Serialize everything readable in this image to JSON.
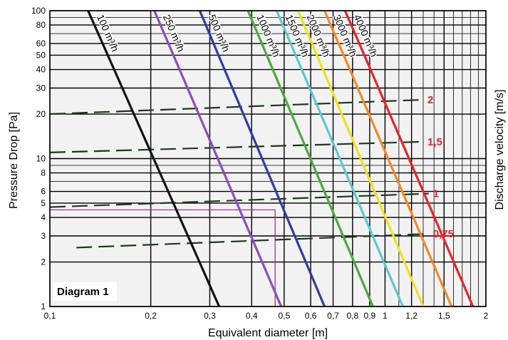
{
  "chart_data": {
    "type": "line",
    "diagram_label": "Diagram 1",
    "xlabel": "Equivalent diameter [m]",
    "ylabel": "Pressure Drop [Pa]",
    "y2label": "Discharge velocity [m/s]",
    "x_scale": "log",
    "y_scale": "log",
    "xlim": [
      0.1,
      2
    ],
    "ylim": [
      1,
      100
    ],
    "grid": true,
    "x_ticks": [
      {
        "value": 0.1,
        "label": "0,1"
      },
      {
        "value": 0.2,
        "label": "0,2"
      },
      {
        "value": 0.3,
        "label": "0,3"
      },
      {
        "value": 0.4,
        "label": "0,4"
      },
      {
        "value": 0.5,
        "label": "0,5"
      },
      {
        "value": 0.6,
        "label": "0,6"
      },
      {
        "value": 0.7,
        "label": "0,7"
      },
      {
        "value": 0.8,
        "label": "0,8"
      },
      {
        "value": 0.9,
        "label": "0,9"
      },
      {
        "value": 1.0,
        "label": "1"
      },
      {
        "value": 1.2,
        "label": "1,2"
      },
      {
        "value": 1.5,
        "label": "1,5"
      },
      {
        "value": 2.0,
        "label": "2"
      }
    ],
    "y_ticks": [
      {
        "value": 1,
        "label": "1"
      },
      {
        "value": 2,
        "label": "2"
      },
      {
        "value": 3,
        "label": "3"
      },
      {
        "value": 4,
        "label": "4"
      },
      {
        "value": 5,
        "label": "5"
      },
      {
        "value": 6,
        "label": "6"
      },
      {
        "value": 8,
        "label": "8"
      },
      {
        "value": 10,
        "label": "10"
      },
      {
        "value": 20,
        "label": "20"
      },
      {
        "value": 30,
        "label": "30"
      },
      {
        "value": 40,
        "label": "40"
      },
      {
        "value": 50,
        "label": "50"
      },
      {
        "value": 60,
        "label": "60"
      },
      {
        "value": 80,
        "label": "80"
      },
      {
        "value": 100,
        "label": "100"
      }
    ],
    "series": [
      {
        "name": "100 m³/h",
        "color": "#111111",
        "points": [
          [
            0.13,
            100
          ],
          [
            0.32,
            1
          ]
        ]
      },
      {
        "name": "250 m³/h",
        "color": "#8a4fbf",
        "points": [
          [
            0.205,
            100
          ],
          [
            0.49,
            1
          ]
        ]
      },
      {
        "name": "500 m³/h",
        "color": "#2e3f9e",
        "points": [
          [
            0.28,
            100
          ],
          [
            0.66,
            1
          ]
        ]
      },
      {
        "name": "1000 m³/h",
        "color": "#4aaa3c",
        "points": [
          [
            0.39,
            100
          ],
          [
            0.92,
            1
          ]
        ]
      },
      {
        "name": "1500 m³/h",
        "color": "#5cc7d3",
        "points": [
          [
            0.475,
            100
          ],
          [
            1.13,
            1
          ]
        ]
      },
      {
        "name": "2000 m³/h",
        "color": "#f0e020",
        "points": [
          [
            0.55,
            100
          ],
          [
            1.3,
            1
          ]
        ]
      },
      {
        "name": "3000 m³/h",
        "color": "#f08a24",
        "points": [
          [
            0.66,
            100
          ],
          [
            1.58,
            1
          ]
        ]
      },
      {
        "name": "4000 m³/h",
        "color": "#e8232a",
        "points": [
          [
            0.76,
            100
          ],
          [
            1.83,
            1
          ]
        ]
      }
    ],
    "velocity_lines": [
      {
        "label": "2",
        "color": "#1a3a1a",
        "points": [
          [
            0.1,
            20
          ],
          [
            1.3,
            25
          ]
        ]
      },
      {
        "label": "1,5",
        "color": "#1a3a1a",
        "points": [
          [
            0.1,
            11
          ],
          [
            1.3,
            13
          ]
        ]
      },
      {
        "label": "1",
        "color": "#1a3a1a",
        "points": [
          [
            0.1,
            4.7
          ],
          [
            1.35,
            5.8
          ]
        ]
      },
      {
        "label": "0,75",
        "color": "#1a3a1a",
        "points": [
          [
            0.12,
            2.5
          ],
          [
            1.35,
            3.1
          ]
        ]
      }
    ],
    "reference_lines": [
      {
        "color": "#a0208a",
        "points": [
          [
            0.1,
            4.5
          ],
          [
            0.47,
            4.5
          ]
        ]
      },
      {
        "color": "#a0208a",
        "points": [
          [
            0.47,
            4.5
          ],
          [
            0.47,
            1
          ]
        ]
      }
    ],
    "colors": {
      "grid": "#000000",
      "background": "#f2f2f2",
      "velocity_label": "#e8232a"
    }
  }
}
